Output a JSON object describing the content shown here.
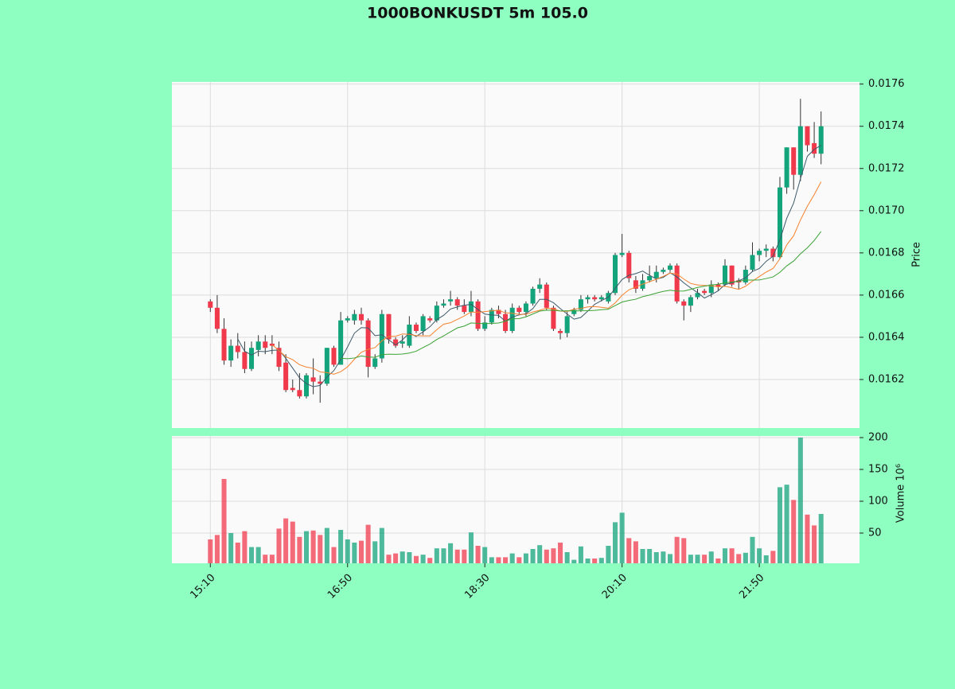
{
  "chart_data": {
    "type": "candlestick",
    "title": "1000BONKUSDT 5m 105.0",
    "ylabel": "Price",
    "categories": [
      "15:10",
      null,
      null,
      null,
      null,
      null,
      null,
      null,
      null,
      null,
      null,
      null,
      null,
      null,
      null,
      null,
      null,
      null,
      null,
      null,
      "16:50",
      null,
      null,
      null,
      null,
      null,
      null,
      null,
      null,
      null,
      null,
      null,
      null,
      null,
      null,
      null,
      null,
      null,
      null,
      null,
      "18:30",
      null,
      null,
      null,
      null,
      null,
      null,
      null,
      null,
      null,
      null,
      null,
      null,
      null,
      null,
      null,
      null,
      null,
      null,
      null,
      "20:10",
      null,
      null,
      null,
      null,
      null,
      null,
      null,
      null,
      null,
      null,
      null,
      null,
      null,
      null,
      null,
      null,
      null,
      null,
      null,
      "21:50",
      null,
      null,
      null,
      null,
      null,
      null,
      null,
      null,
      null
    ],
    "xlim": [
      -5.6,
      94.6
    ],
    "open": [
      0.01657,
      0.01654,
      0.01644,
      0.01629,
      0.01636,
      0.01633,
      0.01625,
      0.01634,
      0.01638,
      0.01637,
      0.01635,
      0.01628,
      0.01616,
      0.01615,
      0.01612,
      0.01621,
      0.01619,
      0.01618,
      0.01635,
      0.01627,
      0.01648,
      0.01648,
      0.01651,
      0.01648,
      0.01626,
      0.0163,
      0.01651,
      0.01639,
      0.01637,
      0.01636,
      0.01646,
      0.01643,
      0.01649,
      0.01648,
      0.01655,
      0.01657,
      0.01658,
      0.01655,
      0.01652,
      0.01657,
      0.01644,
      0.01647,
      0.01653,
      0.01651,
      0.01643,
      0.01654,
      0.01652,
      0.01656,
      0.01663,
      0.01665,
      0.01654,
      0.01643,
      0.01642,
      0.01651,
      0.01653,
      0.01658,
      0.01659,
      0.01658,
      0.01657,
      0.01661,
      0.01679,
      0.0168,
      0.01667,
      0.01663,
      0.01667,
      0.01668,
      0.01671,
      0.01672,
      0.01674,
      0.01657,
      0.01655,
      0.01659,
      0.01662,
      0.01661,
      0.01665,
      0.01665,
      0.01674,
      0.01667,
      0.01666,
      0.01672,
      0.01679,
      0.01681,
      0.01682,
      0.01678,
      0.01711,
      0.0173,
      0.01717,
      0.0174,
      0.01732,
      0.01727
    ],
    "high": [
      0.01658,
      0.0166,
      0.01649,
      0.01639,
      0.01642,
      0.01638,
      0.01638,
      0.01641,
      0.01641,
      0.01641,
      0.01638,
      0.01632,
      0.0162,
      0.01623,
      0.01623,
      0.0163,
      0.01622,
      0.01635,
      0.01636,
      0.01652,
      0.0165,
      0.01653,
      0.01654,
      0.01649,
      0.01632,
      0.01653,
      0.01651,
      0.0164,
      0.01641,
      0.0165,
      0.01647,
      0.01651,
      0.0165,
      0.01657,
      0.01658,
      0.01662,
      0.01659,
      0.01658,
      0.01662,
      0.01658,
      0.0165,
      0.01654,
      0.01655,
      0.01653,
      0.01656,
      0.01655,
      0.01657,
      0.01664,
      0.01668,
      0.01666,
      0.01655,
      0.01644,
      0.01652,
      0.01654,
      0.0166,
      0.0166,
      0.0166,
      0.0166,
      0.01662,
      0.0168,
      0.01689,
      0.01681,
      0.01669,
      0.0167,
      0.01674,
      0.01674,
      0.01673,
      0.01675,
      0.01675,
      0.01658,
      0.0166,
      0.01663,
      0.01663,
      0.01667,
      0.01666,
      0.01677,
      0.01674,
      0.01668,
      0.01674,
      0.01685,
      0.01682,
      0.01684,
      0.01683,
      0.01716,
      0.0173,
      0.0173,
      0.01753,
      0.0174,
      0.01742,
      0.01747
    ],
    "low": [
      0.01652,
      0.01642,
      0.01627,
      0.01626,
      0.0163,
      0.01623,
      0.01624,
      0.01631,
      0.01632,
      0.01632,
      0.01624,
      0.01614,
      0.01614,
      0.01611,
      0.01611,
      0.01613,
      0.01609,
      0.01617,
      0.01626,
      0.01627,
      0.01647,
      0.01646,
      0.01646,
      0.01621,
      0.01625,
      0.01628,
      0.01637,
      0.01635,
      0.01635,
      0.01635,
      0.01642,
      0.01641,
      0.01647,
      0.01647,
      0.01654,
      0.01655,
      0.01653,
      0.01651,
      0.0165,
      0.01643,
      0.01643,
      0.01646,
      0.01649,
      0.01642,
      0.01642,
      0.01651,
      0.0165,
      0.01655,
      0.01661,
      0.01653,
      0.01643,
      0.01639,
      0.0164,
      0.0165,
      0.01652,
      0.01656,
      0.01657,
      0.01657,
      0.01656,
      0.0166,
      0.01678,
      0.01666,
      0.01661,
      0.01662,
      0.01666,
      0.01666,
      0.0167,
      0.01671,
      0.01656,
      0.01648,
      0.01652,
      0.01658,
      0.0166,
      0.01659,
      0.01662,
      0.01664,
      0.01664,
      0.01663,
      0.01665,
      0.01671,
      0.01676,
      0.01678,
      0.01676,
      0.01677,
      0.01708,
      0.0171,
      0.01714,
      0.01728,
      0.01725,
      0.01722
    ],
    "close": [
      0.01654,
      0.01644,
      0.01629,
      0.01636,
      0.01633,
      0.01625,
      0.01635,
      0.01638,
      0.01635,
      0.01636,
      0.01626,
      0.01615,
      0.01615,
      0.01612,
      0.01622,
      0.01619,
      0.01618,
      0.01635,
      0.01627,
      0.01648,
      0.01649,
      0.01651,
      0.01648,
      0.01626,
      0.0163,
      0.01651,
      0.01639,
      0.01636,
      0.01638,
      0.01646,
      0.01643,
      0.0165,
      0.01648,
      0.01655,
      0.01656,
      0.01658,
      0.01655,
      0.01652,
      0.01657,
      0.01644,
      0.01647,
      0.01653,
      0.01651,
      0.01643,
      0.01654,
      0.01652,
      0.01656,
      0.01663,
      0.01665,
      0.01654,
      0.01644,
      0.01642,
      0.0165,
      0.01653,
      0.01658,
      0.01659,
      0.01658,
      0.01659,
      0.01661,
      0.01679,
      0.0168,
      0.01668,
      0.01663,
      0.01667,
      0.01669,
      0.01671,
      0.01672,
      0.01674,
      0.01657,
      0.01655,
      0.01659,
      0.01661,
      0.01661,
      0.01665,
      0.01664,
      0.01674,
      0.01665,
      0.01666,
      0.01672,
      0.01679,
      0.01681,
      0.01682,
      0.01678,
      0.01711,
      0.0173,
      0.01717,
      0.0174,
      0.01731,
      0.01727,
      0.0174
    ],
    "up_color": "#13a47b",
    "down_color": "#f03a4c",
    "wick_color": "#333333",
    "moving_averages": [
      {
        "color": "#3d5a6c",
        "values": [
          null,
          null,
          null,
          null,
          0.016392,
          0.016334,
          0.016316,
          0.016334,
          0.016332,
          0.016338,
          0.01634,
          0.0163,
          0.016254,
          0.016208,
          0.01618,
          0.016166,
          0.016172,
          0.016212,
          0.016242,
          0.016294,
          0.016354,
          0.01642,
          0.016446,
          0.016444,
          0.016408,
          0.016412,
          0.016388,
          0.016364,
          0.016388,
          0.01642,
          0.016404,
          0.016426,
          0.01645,
          0.016484,
          0.016504,
          0.016534,
          0.016544,
          0.016552,
          0.016556,
          0.016532,
          0.01651,
          0.016506,
          0.016504,
          0.016476,
          0.016496,
          0.016506,
          0.016512,
          0.016536,
          0.01658,
          0.01658,
          0.016564,
          0.016536,
          0.01651,
          0.016486,
          0.016494,
          0.016524,
          0.016556,
          0.016574,
          0.01659,
          0.016632,
          0.016674,
          0.016694,
          0.016702,
          0.016714,
          0.016694,
          0.016676,
          0.016684,
          0.016706,
          0.016686,
          0.016658,
          0.016634,
          0.016612,
          0.016586,
          0.016602,
          0.01662,
          0.01665,
          0.016658,
          0.016668,
          0.016682,
          0.016712,
          0.016726,
          0.01676,
          0.016784,
          0.016862,
          0.016964,
          0.017036,
          0.017152,
          0.017258,
          0.01729,
          0.01731
        ]
      },
      {
        "color": "#f5822e",
        "values": [
          null,
          null,
          null,
          null,
          null,
          null,
          null,
          null,
          null,
          0.016365,
          0.016337,
          0.016308,
          0.016294,
          0.01627,
          0.016259,
          0.016253,
          0.016236,
          0.016233,
          0.016225,
          0.016237,
          0.01626,
          0.016296,
          0.016329,
          0.016343,
          0.016351,
          0.016383,
          0.016404,
          0.016405,
          0.016416,
          0.016414,
          0.016408,
          0.016407,
          0.016407,
          0.016436,
          0.016462,
          0.016469,
          0.016485,
          0.016501,
          0.01652,
          0.016518,
          0.016522,
          0.016525,
          0.016528,
          0.016516,
          0.016514,
          0.016508,
          0.016509,
          0.01652,
          0.016528,
          0.016538,
          0.016535,
          0.016524,
          0.016523,
          0.016533,
          0.016537,
          0.016544,
          0.016546,
          0.016542,
          0.016538,
          0.016563,
          0.016599,
          0.016625,
          0.016638,
          0.016652,
          0.016663,
          0.016675,
          0.016689,
          0.016704,
          0.0167,
          0.016676,
          0.016655,
          0.016648,
          0.016646,
          0.016644,
          0.016639,
          0.016642,
          0.016635,
          0.016627,
          0.016642,
          0.016666,
          0.016688,
          0.016709,
          0.016726,
          0.016772,
          0.016838,
          0.016881,
          0.016956,
          0.017021,
          0.017076,
          0.017137
        ]
      },
      {
        "color": "#3ba334",
        "values": [
          null,
          null,
          null,
          null,
          null,
          null,
          null,
          null,
          null,
          null,
          null,
          null,
          null,
          null,
          null,
          null,
          null,
          null,
          null,
          0.016301,
          0.0162985,
          0.016302,
          0.0163115,
          0.0163065,
          0.016305,
          0.016318,
          0.01632,
          0.016319,
          0.0163205,
          0.0163255,
          0.016334,
          0.0163515,
          0.016368,
          0.0163895,
          0.0164065,
          0.016426,
          0.0164445,
          0.016453,
          0.016468,
          0.016466,
          0.016465,
          0.016466,
          0.0164675,
          0.016476,
          0.016488,
          0.0164885,
          0.016497,
          0.0165105,
          0.016524,
          0.016528,
          0.0165285,
          0.0165245,
          0.0165255,
          0.0165245,
          0.0165255,
          0.016526,
          0.0165275,
          0.016531,
          0.016533,
          0.0165505,
          0.016567,
          0.0165745,
          0.0165805,
          0.0165925,
          0.0166,
          0.0166095,
          0.0166175,
          0.016623,
          0.016619,
          0.0166195,
          0.016627,
          0.0166365,
          0.016642,
          0.016648,
          0.016651,
          0.0166585,
          0.016662,
          0.0166655,
          0.016671,
          0.016671,
          0.0166715,
          0.0166785,
          0.016686,
          0.016708,
          0.0167385,
          0.0167615,
          0.0167955,
          0.016824,
          0.016859,
          0.0169015
        ]
      }
    ],
    "ylim": [
      0.01597,
      0.01761
    ],
    "yticks": [
      0.0162,
      0.0164,
      0.0166,
      0.0168,
      {
        "value": 0.017,
        "label": "0.0170"
      },
      0.0172,
      0.0174,
      0.0176
    ],
    "volume": {
      "ylabel": "Volume  10⁶",
      "values": [
        40,
        47,
        135,
        50,
        35,
        53,
        28,
        28,
        16,
        16,
        57,
        73,
        68,
        44,
        53,
        54,
        47,
        58,
        28,
        55,
        40,
        35,
        38,
        63,
        37,
        58,
        16,
        18,
        21,
        20,
        14,
        16,
        11,
        26,
        26,
        34,
        24,
        24,
        51,
        30,
        28,
        12,
        12,
        12,
        18,
        12,
        18,
        25,
        31,
        24,
        26,
        35,
        20,
        8,
        29,
        10,
        10,
        11,
        30,
        67,
        82,
        42,
        37,
        25,
        25,
        20,
        21,
        17,
        44,
        42,
        16,
        16,
        16,
        21,
        10,
        26,
        26,
        17,
        19,
        44,
        26,
        15,
        22,
        122,
        126,
        102,
        200,
        79,
        62,
        80
      ],
      "ylim": [
        2.5,
        202.5
      ],
      "yticks": [
        50,
        100,
        150,
        200
      ]
    },
    "grid": true
  }
}
